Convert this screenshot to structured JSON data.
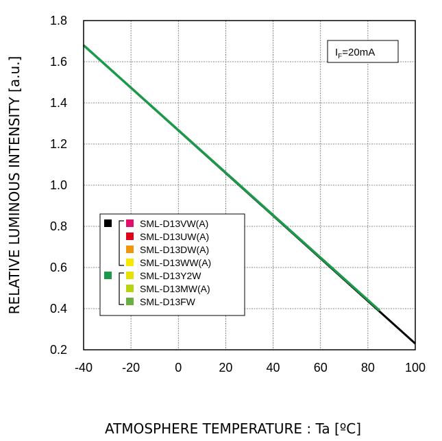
{
  "chart_data": {
    "type": "line",
    "xlabel": "ATMOSPHERE TEMPERATURE : Ta [ºC]",
    "ylabel": "RELATIVE LUMINOUS INTENSITY [a.u.]",
    "xlim": [
      -40,
      100
    ],
    "ylim": [
      0.2,
      1.8
    ],
    "x_ticks": [
      -40,
      -20,
      0,
      20,
      40,
      60,
      80,
      100
    ],
    "x_tick_labels": [
      "-40",
      "-20",
      "0",
      "20",
      "40",
      "60",
      "80",
      "100"
    ],
    "y_ticks": [
      0.2,
      0.4,
      0.6,
      0.8,
      1.0,
      1.2,
      1.4,
      1.6,
      1.8
    ],
    "y_tick_labels": [
      "0.2",
      "0.4",
      "0.6",
      "0.8",
      "1.0",
      "1.2",
      "1.4",
      "1.6",
      "1.8"
    ],
    "grid": true,
    "condition": {
      "main": "I",
      "sub": "F",
      "rest": "=20mA"
    },
    "series": [
      {
        "color": "#000000",
        "x": [
          -40,
          100
        ],
        "y": [
          1.68,
          0.23
        ]
      },
      {
        "color": "#1a9a4a",
        "x": [
          -40,
          85
        ],
        "y": [
          1.68,
          0.39
        ]
      }
    ],
    "legend": {
      "placement": "bottom-left",
      "groups": [
        {
          "marker_color": "#000000",
          "items": [
            {
              "label": "SML-D13VW(A)",
              "color": "#e0106a"
            },
            {
              "label": "SML-D13UW(A)",
              "color": "#e0001a"
            },
            {
              "label": "SML-D13DW(A)",
              "color": "#f0960a"
            },
            {
              "label": "SML-D13WW(A)",
              "color": "#f8e800"
            }
          ]
        },
        {
          "marker_color": "#1a9a4a",
          "items": [
            {
              "label": "SML-D13Y2W",
              "color": "#e8e000"
            },
            {
              "label": "SML-D13MW(A)",
              "color": "#b8d410"
            },
            {
              "label": "SML-D13FW",
              "color": "#6ab040"
            }
          ]
        }
      ]
    }
  }
}
